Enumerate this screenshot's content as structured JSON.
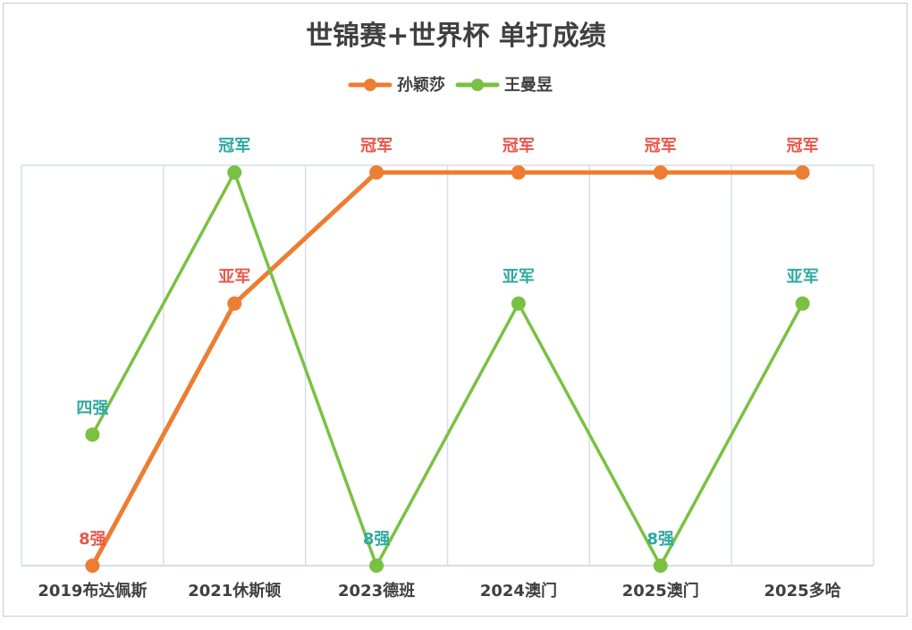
{
  "chart_data": {
    "type": "line",
    "title": "世锦赛+世界杯 单打成绩",
    "categories": [
      "2019布达佩斯",
      "2021休斯顿",
      "2023德班",
      "2024澳门",
      "2025澳门",
      "2025多哈"
    ],
    "y_levels": [
      "8强",
      "四强",
      "亚军",
      "冠军"
    ],
    "ylim": [
      0,
      3
    ],
    "grid": "vertical",
    "legend_position": "top-center",
    "series": [
      {
        "name": "孙颖莎",
        "color": "#ED7D31",
        "label_color": "#E8584A",
        "values": [
          0,
          2,
          3,
          3,
          3,
          3
        ],
        "labels": [
          "8强",
          "亚军",
          "冠军",
          "冠军",
          "冠军",
          "冠军"
        ]
      },
      {
        "name": "王曼昱",
        "color": "#7AC143",
        "label_color": "#2FA9A0",
        "values": [
          1,
          3,
          0,
          2,
          0,
          2
        ],
        "labels": [
          "四强",
          "冠军",
          "8强",
          "亚军",
          "8强",
          "亚军"
        ]
      }
    ]
  }
}
